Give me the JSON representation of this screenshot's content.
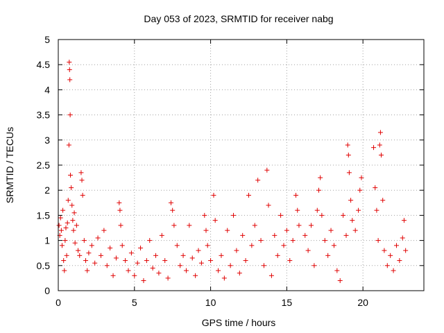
{
  "chart_data": {
    "type": "scatter",
    "title": "Day 053 of 2023, SRMTID for receiver nabg",
    "xlabel": "GPS time / hours",
    "ylabel": "SRMTID / TECUs",
    "xlim": [
      0,
      24
    ],
    "ylim": [
      0,
      5
    ],
    "x_ticks": [
      0,
      5,
      10,
      15,
      20
    ],
    "x_tick_labels": [
      "0",
      "5",
      "10",
      "15",
      "20"
    ],
    "y_ticks": [
      0,
      0.5,
      1,
      1.5,
      2,
      2.5,
      3,
      3.5,
      4,
      4.5,
      5
    ],
    "y_tick_labels": [
      "0",
      "0.5",
      "1",
      "1.5",
      "2",
      "2.5",
      "3",
      "3.5",
      "4",
      "4.5",
      "5"
    ],
    "grid": true,
    "marker": "+",
    "marker_color": "#e00000",
    "series": [
      {
        "name": "SRMTID",
        "points": [
          [
            0.05,
            1.3
          ],
          [
            0.1,
            1.1
          ],
          [
            0.15,
            1.45
          ],
          [
            0.2,
            1.2
          ],
          [
            0.25,
            0.9
          ],
          [
            0.3,
            1.6
          ],
          [
            0.35,
            0.6
          ],
          [
            0.4,
            0.4
          ],
          [
            0.45,
            1.0
          ],
          [
            0.5,
            1.25
          ],
          [
            0.55,
            0.7
          ],
          [
            0.6,
            1.35
          ],
          [
            0.65,
            1.8
          ],
          [
            0.7,
            2.9
          ],
          [
            0.72,
            4.55
          ],
          [
            0.74,
            4.4
          ],
          [
            0.76,
            4.2
          ],
          [
            0.78,
            3.5
          ],
          [
            0.8,
            2.3
          ],
          [
            0.85,
            2.05
          ],
          [
            0.9,
            1.7
          ],
          [
            0.95,
            1.4
          ],
          [
            1.0,
            1.2
          ],
          [
            1.05,
            1.55
          ],
          [
            1.1,
            0.95
          ],
          [
            1.2,
            1.3
          ],
          [
            1.3,
            0.8
          ],
          [
            1.4,
            0.7
          ],
          [
            1.5,
            2.35
          ],
          [
            1.55,
            2.2
          ],
          [
            1.6,
            1.9
          ],
          [
            1.7,
            1.0
          ],
          [
            1.8,
            0.6
          ],
          [
            1.9,
            0.4
          ],
          [
            2.0,
            0.75
          ],
          [
            2.2,
            0.9
          ],
          [
            2.4,
            0.55
          ],
          [
            2.6,
            1.05
          ],
          [
            2.8,
            0.7
          ],
          [
            3.0,
            1.2
          ],
          [
            3.2,
            0.5
          ],
          [
            3.4,
            0.85
          ],
          [
            3.6,
            0.3
          ],
          [
            3.8,
            0.65
          ],
          [
            4.0,
            1.75
          ],
          [
            4.05,
            1.6
          ],
          [
            4.1,
            1.3
          ],
          [
            4.2,
            0.9
          ],
          [
            4.4,
            0.6
          ],
          [
            4.6,
            0.4
          ],
          [
            4.8,
            0.75
          ],
          [
            5.0,
            0.3
          ],
          [
            5.2,
            0.55
          ],
          [
            5.4,
            0.85
          ],
          [
            5.6,
            0.2
          ],
          [
            5.8,
            0.6
          ],
          [
            6.0,
            1.0
          ],
          [
            6.2,
            0.45
          ],
          [
            6.4,
            0.7
          ],
          [
            6.6,
            0.35
          ],
          [
            6.8,
            1.1
          ],
          [
            7.0,
            0.6
          ],
          [
            7.2,
            0.25
          ],
          [
            7.4,
            1.75
          ],
          [
            7.5,
            1.6
          ],
          [
            7.6,
            1.3
          ],
          [
            7.8,
            0.9
          ],
          [
            8.0,
            0.5
          ],
          [
            8.2,
            0.7
          ],
          [
            8.4,
            0.4
          ],
          [
            8.6,
            1.3
          ],
          [
            8.8,
            0.65
          ],
          [
            9.0,
            0.3
          ],
          [
            9.2,
            0.8
          ],
          [
            9.4,
            0.55
          ],
          [
            9.6,
            1.5
          ],
          [
            9.7,
            1.2
          ],
          [
            9.8,
            0.9
          ],
          [
            10.0,
            0.6
          ],
          [
            10.2,
            1.9
          ],
          [
            10.3,
            1.4
          ],
          [
            10.5,
            0.4
          ],
          [
            10.7,
            0.7
          ],
          [
            10.9,
            0.25
          ],
          [
            11.1,
            1.2
          ],
          [
            11.3,
            0.5
          ],
          [
            11.5,
            1.5
          ],
          [
            11.7,
            0.8
          ],
          [
            11.9,
            0.35
          ],
          [
            12.1,
            1.1
          ],
          [
            12.3,
            0.6
          ],
          [
            12.5,
            1.9
          ],
          [
            12.7,
            0.9
          ],
          [
            12.9,
            1.3
          ],
          [
            13.1,
            2.2
          ],
          [
            13.3,
            1.0
          ],
          [
            13.5,
            0.5
          ],
          [
            13.7,
            2.4
          ],
          [
            13.8,
            1.7
          ],
          [
            14.0,
            0.3
          ],
          [
            14.2,
            1.1
          ],
          [
            14.4,
            0.7
          ],
          [
            14.6,
            1.5
          ],
          [
            14.8,
            0.9
          ],
          [
            15.0,
            1.2
          ],
          [
            15.2,
            0.6
          ],
          [
            15.4,
            1.0
          ],
          [
            15.6,
            1.9
          ],
          [
            15.7,
            1.6
          ],
          [
            15.8,
            1.3
          ],
          [
            16.2,
            1.1
          ],
          [
            16.4,
            0.8
          ],
          [
            16.6,
            1.3
          ],
          [
            16.8,
            0.5
          ],
          [
            17.0,
            1.6
          ],
          [
            17.1,
            2.0
          ],
          [
            17.2,
            2.25
          ],
          [
            17.3,
            1.5
          ],
          [
            17.5,
            1.0
          ],
          [
            17.7,
            0.7
          ],
          [
            17.9,
            1.2
          ],
          [
            18.1,
            0.9
          ],
          [
            18.3,
            0.4
          ],
          [
            18.5,
            0.2
          ],
          [
            18.7,
            1.5
          ],
          [
            18.9,
            1.1
          ],
          [
            19.0,
            2.9
          ],
          [
            19.05,
            2.7
          ],
          [
            19.1,
            2.35
          ],
          [
            19.2,
            1.8
          ],
          [
            19.3,
            1.4
          ],
          [
            19.5,
            1.2
          ],
          [
            19.7,
            1.6
          ],
          [
            19.8,
            2.0
          ],
          [
            19.9,
            2.25
          ],
          [
            20.7,
            2.85
          ],
          [
            20.8,
            2.05
          ],
          [
            20.9,
            1.6
          ],
          [
            21.0,
            1.0
          ],
          [
            21.1,
            2.9
          ],
          [
            21.15,
            3.15
          ],
          [
            21.2,
            2.7
          ],
          [
            21.3,
            1.8
          ],
          [
            21.4,
            0.8
          ],
          [
            21.6,
            0.5
          ],
          [
            21.8,
            0.7
          ],
          [
            22.0,
            0.4
          ],
          [
            22.2,
            0.9
          ],
          [
            22.4,
            0.6
          ],
          [
            22.6,
            1.05
          ],
          [
            22.7,
            1.4
          ],
          [
            22.8,
            0.8
          ]
        ]
      }
    ]
  }
}
